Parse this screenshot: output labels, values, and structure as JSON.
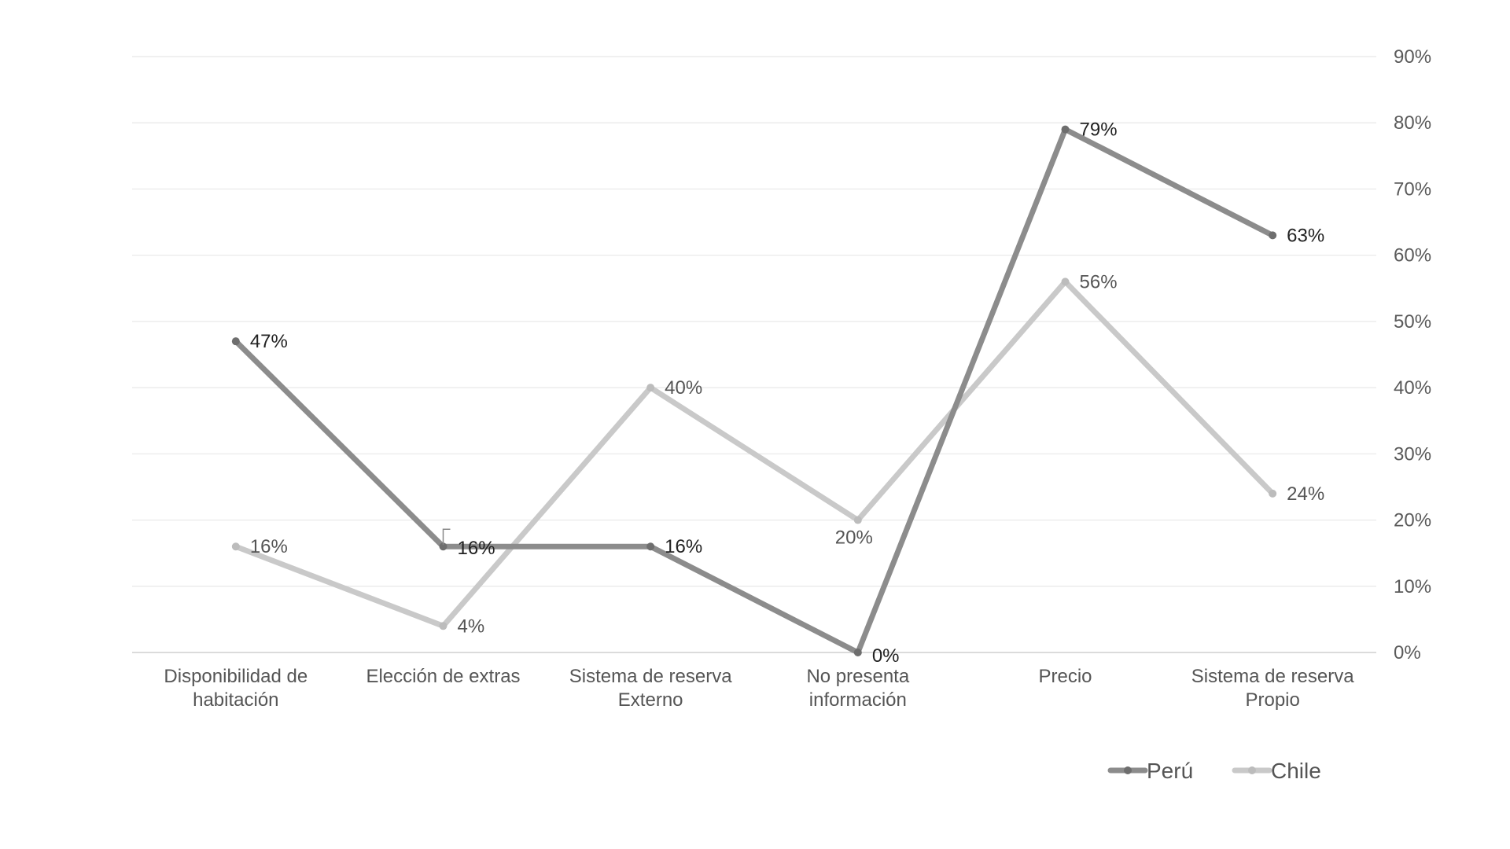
{
  "chart_data": {
    "type": "line",
    "categories": [
      [
        "Disponibilidad de",
        "habitación"
      ],
      [
        "Elección de extras"
      ],
      [
        "Sistema de reserva",
        "Externo"
      ],
      [
        "No presenta",
        "información"
      ],
      [
        "Precio"
      ],
      [
        "Sistema de reserva",
        "Propio"
      ]
    ],
    "series": [
      {
        "name": "Perú",
        "values": [
          47,
          16,
          16,
          0,
          79,
          63
        ],
        "labels": [
          "47%",
          "16%",
          "16%",
          "0%",
          "79%",
          "63%"
        ],
        "color": "#8c8c8c",
        "marker_color": "#6e6e6e",
        "label_color": "#222222"
      },
      {
        "name": "Chile",
        "values": [
          16,
          4,
          40,
          20,
          56,
          24
        ],
        "labels": [
          "16%",
          "4%",
          "40%",
          "20%",
          "56%",
          "24%"
        ],
        "color": "#c9c9c9",
        "marker_color": "#bcbcbc",
        "label_color": "#555555"
      }
    ],
    "y_ticks": [
      "0%",
      "10%",
      "20%",
      "30%",
      "40%",
      "50%",
      "60%",
      "70%",
      "80%",
      "90%"
    ],
    "ylim": [
      0,
      90
    ],
    "y_axis_side": "right",
    "grid": true,
    "legend_position": "bottom-right"
  }
}
